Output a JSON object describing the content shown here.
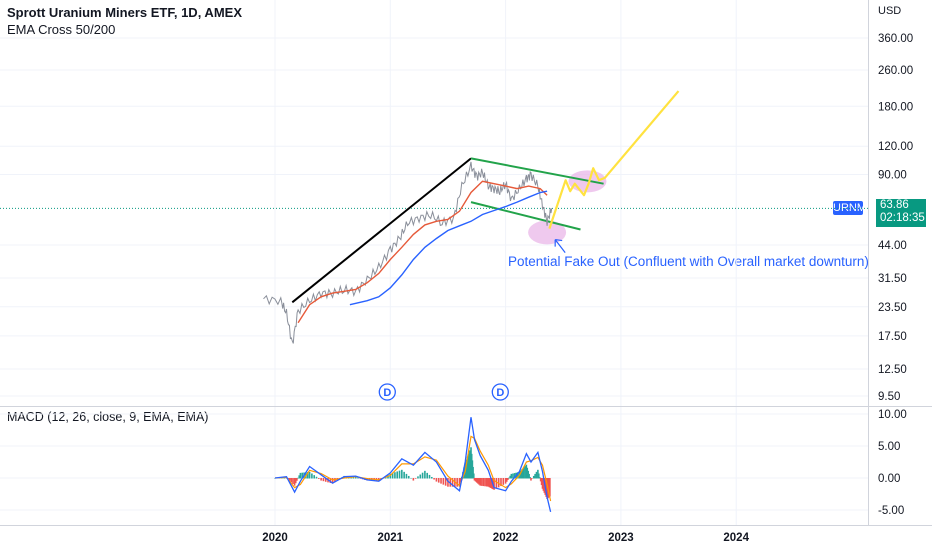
{
  "header": {
    "title": "Sprott Uranium Miners ETF, 1D, AMEX",
    "indicator": "EMA Cross 50/200",
    "currency": "USD"
  },
  "ticker": {
    "symbol": "URNM",
    "price": "63.86",
    "countdown": "02:18:35"
  },
  "annotation": "Potential Fake Out (Confluent with Overall market downturn)",
  "dividend_marker": "D",
  "colors": {
    "price": "#f23645",
    "ema_fast": "#e65a3a",
    "ema_slow": "#2962ff",
    "channel": "#22a34a",
    "trendline": "#000000",
    "projection": "#ffe23f",
    "highlight": "#e9b7e8",
    "macd": "#2962ff",
    "signal": "#ff9800",
    "hist_up": "#26a69a",
    "hist_down": "#ef5350",
    "price_line": "#089981"
  },
  "chart_data": [
    {
      "type": "line",
      "title": "Sprott Uranium Miners ETF, 1D, AMEX",
      "scale": "log",
      "y_ticks": [
        "360.00",
        "260.00",
        "180.00",
        "120.00",
        "90.00",
        "44.00",
        "31.50",
        "23.50",
        "17.50",
        "12.50",
        "9.50"
      ],
      "x_ticks": [
        "2020",
        "2021",
        "2022",
        "2023",
        "2024"
      ],
      "series": [
        {
          "name": "URNM",
          "x": [
            2019.9,
            2020.05,
            2020.1,
            2020.15,
            2020.2,
            2020.3,
            2020.4,
            2020.5,
            2020.6,
            2020.7,
            2020.8,
            2020.9,
            2021.0,
            2021.08,
            2021.15,
            2021.25,
            2021.35,
            2021.45,
            2021.55,
            2021.62,
            2021.7,
            2021.75,
            2021.8,
            2021.85,
            2021.9,
            2021.95,
            2022.0,
            2022.05,
            2022.12,
            2022.18,
            2022.22,
            2022.28,
            2022.32,
            2022.36,
            2022.4
          ],
          "values": [
            25.5,
            25.0,
            22.0,
            16.0,
            22.5,
            25.0,
            27.0,
            27.0,
            28.0,
            27.5,
            31.0,
            35.0,
            42.0,
            47.0,
            55.0,
            58.0,
            60.0,
            55.0,
            58.0,
            80.0,
            98.0,
            88.0,
            92.0,
            80.0,
            78.0,
            76.0,
            82.0,
            70.0,
            78.0,
            86.0,
            90.0,
            80.0,
            66.0,
            56.0,
            63.86
          ]
        },
        {
          "name": "EMA 50",
          "x": [
            2020.2,
            2020.3,
            2020.4,
            2020.5,
            2020.6,
            2020.7,
            2020.8,
            2020.9,
            2021.0,
            2021.1,
            2021.2,
            2021.3,
            2021.4,
            2021.5,
            2021.6,
            2021.7,
            2021.8,
            2021.9,
            2022.0,
            2022.1,
            2022.2,
            2022.3,
            2022.36
          ],
          "values": [
            20.0,
            24.0,
            26.0,
            27.0,
            27.5,
            28.0,
            30.0,
            33.0,
            38.0,
            43.0,
            49.0,
            54.0,
            56.0,
            57.0,
            62.0,
            75.0,
            84.0,
            82.0,
            80.0,
            78.0,
            80.0,
            78.0,
            73.0
          ]
        },
        {
          "name": "EMA 200",
          "x": [
            2020.65,
            2020.8,
            2020.9,
            2021.0,
            2021.1,
            2021.2,
            2021.3,
            2021.4,
            2021.5,
            2021.6,
            2021.7,
            2021.8,
            2021.9,
            2022.0,
            2022.1,
            2022.2,
            2022.3,
            2022.36
          ],
          "values": [
            24.0,
            25.0,
            26.0,
            28.5,
            32.5,
            38.0,
            43.0,
            47.0,
            51.0,
            53.5,
            56.0,
            60.0,
            62.5,
            65.0,
            68.0,
            71.5,
            75.0,
            76.0
          ]
        }
      ],
      "annotations": [
        {
          "label": "trend line",
          "x": [
            2020.15,
            2021.7
          ],
          "values": [
            24.6,
            106
          ]
        },
        {
          "label": "channel top",
          "x": [
            2021.7,
            2022.85
          ],
          "values": [
            106,
            82
          ]
        },
        {
          "label": "channel bottom",
          "x": [
            2021.7,
            2022.65
          ],
          "values": [
            68,
            51.5
          ]
        },
        {
          "label": "projection",
          "x": [
            2022.38,
            2022.52,
            2022.56,
            2022.6,
            2022.68,
            2022.72,
            2022.76,
            2022.81,
            2022.86,
            2023.5
          ],
          "values": [
            52,
            85,
            76,
            82,
            73,
            82,
            96,
            85,
            87,
            210
          ]
        }
      ]
    },
    {
      "type": "line",
      "title": "MACD (12, 26, close, 9, EMA, EMA)",
      "y_ticks": [
        "10.00",
        "5.00",
        "0.00",
        "-5.00"
      ],
      "series": [
        {
          "name": "MACD",
          "x": [
            2020.0,
            2020.1,
            2020.17,
            2020.22,
            2020.3,
            2020.4,
            2020.5,
            2020.6,
            2020.7,
            2020.8,
            2020.9,
            2021.0,
            2021.1,
            2021.2,
            2021.3,
            2021.4,
            2021.5,
            2021.6,
            2021.65,
            2021.7,
            2021.73,
            2021.78,
            2021.85,
            2021.9,
            2022.0,
            2022.05,
            2022.12,
            2022.18,
            2022.22,
            2022.28,
            2022.32,
            2022.36,
            2022.39
          ],
          "values": [
            0.0,
            0.2,
            -2.2,
            -0.5,
            1.8,
            0.5,
            -0.8,
            0.2,
            0.3,
            -0.3,
            -0.5,
            0.8,
            3.0,
            2.0,
            4.0,
            2.5,
            -0.5,
            -2.0,
            2.5,
            9.5,
            6.0,
            3.5,
            1.2,
            -1.5,
            -2.0,
            -0.5,
            1.0,
            3.8,
            2.5,
            4.0,
            1.0,
            -3.0,
            -5.3
          ]
        },
        {
          "name": "Signal",
          "x": [
            2020.0,
            2020.1,
            2020.17,
            2020.22,
            2020.3,
            2020.4,
            2020.5,
            2020.6,
            2020.7,
            2020.8,
            2020.9,
            2021.0,
            2021.1,
            2021.2,
            2021.3,
            2021.4,
            2021.5,
            2021.6,
            2021.65,
            2021.7,
            2021.73,
            2021.78,
            2021.85,
            2021.9,
            2022.0,
            2022.05,
            2022.12,
            2022.18,
            2022.22,
            2022.28,
            2022.32,
            2022.36,
            2022.39
          ],
          "values": [
            0.0,
            0.1,
            -1.5,
            -1.0,
            1.2,
            0.7,
            -0.3,
            0.0,
            0.2,
            -0.1,
            -0.3,
            0.4,
            2.2,
            2.2,
            3.3,
            2.8,
            0.3,
            -1.2,
            1.0,
            6.5,
            6.2,
            4.2,
            2.0,
            -0.4,
            -1.5,
            -0.9,
            0.4,
            2.5,
            2.7,
            3.2,
            2.0,
            -1.0,
            -3.6
          ]
        }
      ]
    }
  ]
}
